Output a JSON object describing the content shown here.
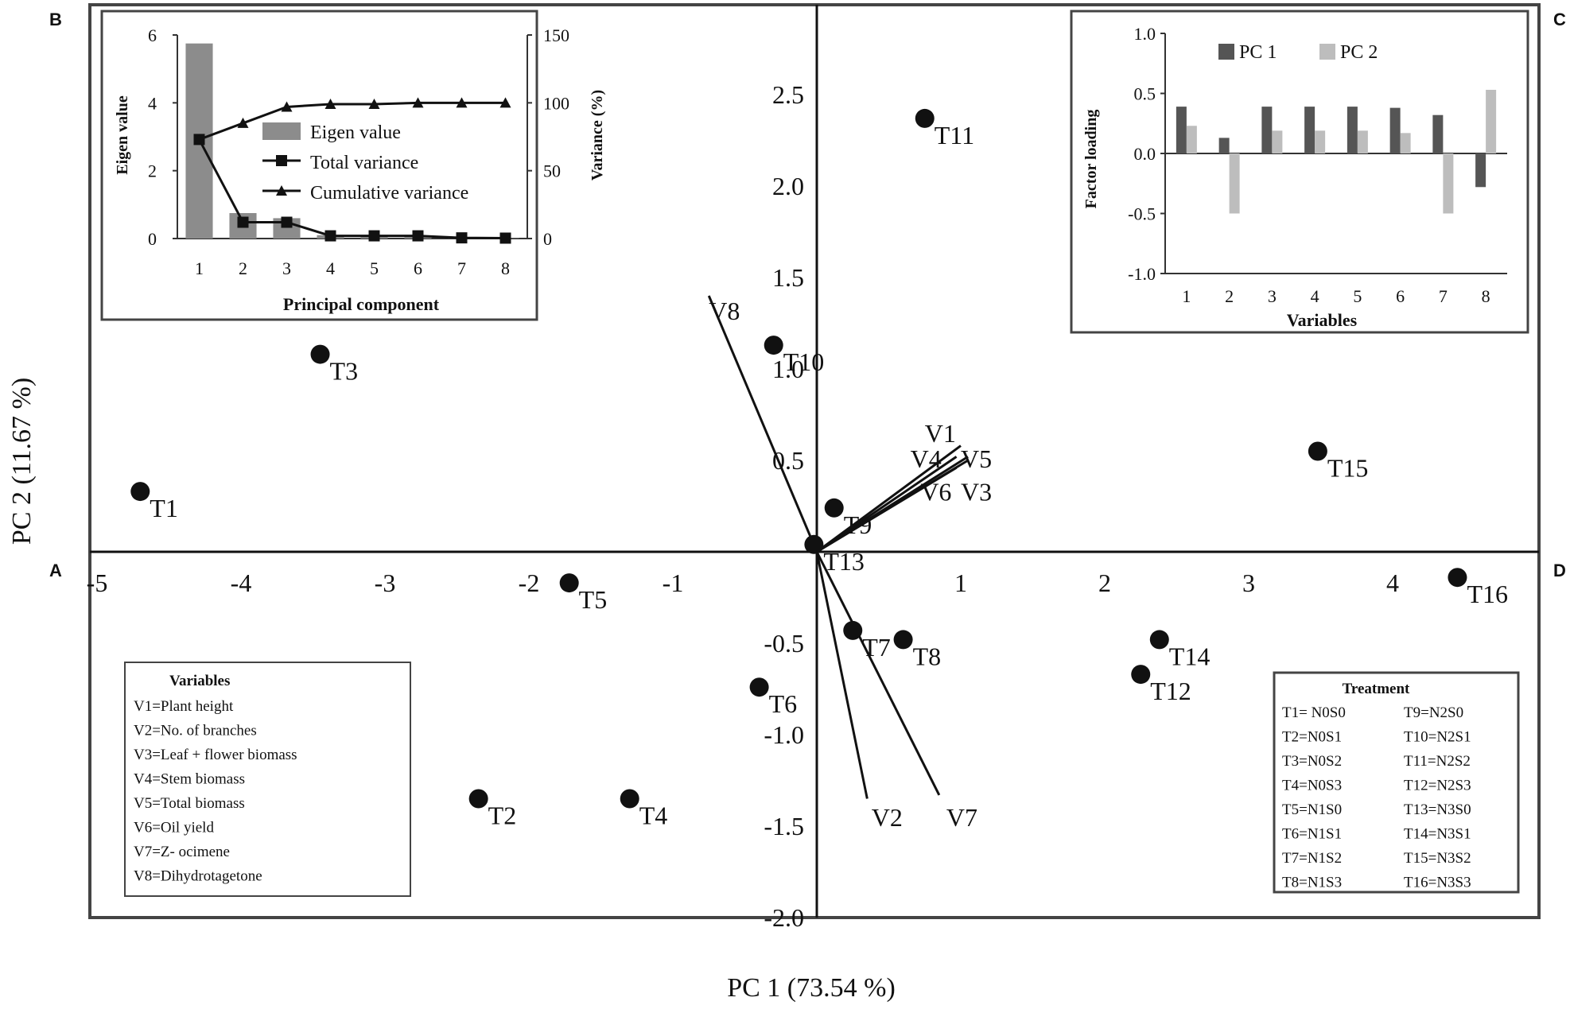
{
  "panel_letters": {
    "a": "A",
    "b": "B",
    "c": "C",
    "d": "D"
  },
  "chart_data": [
    {
      "id": "biplot",
      "type": "scatter",
      "xlabel": "PC 1 (73.54 %)",
      "ylabel": "PC 2 (11.67 %)",
      "xlim": [
        -5,
        5
      ],
      "ylim": [
        -2.0,
        3.0
      ],
      "x_ticks": [
        -5,
        -4,
        -3,
        -2,
        -1,
        1,
        2,
        3,
        4
      ],
      "x_tick_labels": [
        "-5",
        "-4",
        "-3",
        "-2",
        "-1",
        "1",
        "2",
        "3",
        "4"
      ],
      "y_ticks": [
        2.5,
        2.0,
        1.5,
        1.0,
        0.5,
        -0.5,
        -1.0,
        -1.5,
        -2.0
      ],
      "y_tick_labels": [
        "2.5",
        "2.0",
        "1.5",
        "1.0",
        "0.5",
        "-0.5",
        "-1.0",
        "-1.5",
        "-2.0"
      ],
      "points": [
        {
          "label": "T1",
          "x": -4.7,
          "y": 0.33
        },
        {
          "label": "T2",
          "x": -2.35,
          "y": -1.35
        },
        {
          "label": "T3",
          "x": -3.45,
          "y": 1.08
        },
        {
          "label": "T4",
          "x": -1.3,
          "y": -1.35
        },
        {
          "label": "T5",
          "x": -1.72,
          "y": -0.17
        },
        {
          "label": "T6",
          "x": -0.4,
          "y": -0.74
        },
        {
          "label": "T7",
          "x": 0.25,
          "y": -0.43
        },
        {
          "label": "T8",
          "x": 0.6,
          "y": -0.48
        },
        {
          "label": "T9",
          "x": 0.12,
          "y": 0.24
        },
        {
          "label": "T10",
          "x": -0.3,
          "y": 1.13
        },
        {
          "label": "T11",
          "x": 0.75,
          "y": 2.37
        },
        {
          "label": "T12",
          "x": 2.25,
          "y": -0.67
        },
        {
          "label": "T13",
          "x": -0.02,
          "y": 0.04
        },
        {
          "label": "T14",
          "x": 2.38,
          "y": -0.48
        },
        {
          "label": "T15",
          "x": 3.48,
          "y": 0.55
        },
        {
          "label": "T16",
          "x": 4.45,
          "y": -0.14
        }
      ],
      "vectors": [
        {
          "label": "V1",
          "x": 1.0,
          "y": 0.58
        },
        {
          "label": "V2",
          "x": 0.35,
          "y": -1.35
        },
        {
          "label": "V3",
          "x": 1.05,
          "y": 0.5
        },
        {
          "label": "V4",
          "x": 0.97,
          "y": 0.52
        },
        {
          "label": "V5",
          "x": 1.05,
          "y": 0.52
        },
        {
          "label": "V6",
          "x": 0.97,
          "y": 0.46
        },
        {
          "label": "V7",
          "x": 0.85,
          "y": -1.33
        },
        {
          "label": "V8",
          "x": -0.75,
          "y": 1.4
        }
      ],
      "vector_labels": [
        {
          "text": "V1",
          "x": 0.75,
          "y": 0.6
        },
        {
          "text": "V4",
          "x": 0.65,
          "y": 0.46
        },
        {
          "text": "V5",
          "x": 1.0,
          "y": 0.46
        },
        {
          "text": "V6",
          "x": 0.72,
          "y": 0.28
        },
        {
          "text": "V3",
          "x": 1.0,
          "y": 0.28
        },
        {
          "text": "V8",
          "x": -0.75,
          "y": 1.27
        },
        {
          "text": "V2",
          "x": 0.38,
          "y": -1.5
        },
        {
          "text": "V7",
          "x": 0.9,
          "y": -1.5
        }
      ],
      "variables_legend": {
        "title": "Variables",
        "items": [
          "V1=Plant height",
          "V2=No. of branches",
          "V3=Leaf + flower biomass",
          "V4=Stem biomass",
          "V5=Total biomass",
          "V6=Oil yield",
          "V7=Z- ocimene",
          "V8=Dihydrotagetone"
        ]
      },
      "treatment_legend": {
        "title": "Treatment",
        "left": [
          "T1= N0S0",
          "T2=N0S1",
          "T3=N0S2",
          "T4=N0S3",
          "T5=N1S0",
          "T6=N1S1",
          "T7=N1S2",
          "T8=N1S3"
        ],
        "right": [
          "T9=N2S0",
          "T10=N2S1",
          "T11=N2S2",
          "T12=N2S3",
          "T13=N3S0",
          "T14=N3S1",
          "T15=N3S2",
          "T16=N3S3"
        ]
      }
    },
    {
      "id": "scree",
      "type": "bar",
      "xlabel": "Principal component",
      "ylabel": "Eigen value",
      "y2label": "Variance (%)",
      "categories": [
        "1",
        "2",
        "3",
        "4",
        "5",
        "6",
        "7",
        "8"
      ],
      "ylim": [
        0,
        6
      ],
      "y_ticks": [
        "0",
        "2",
        "4",
        "6"
      ],
      "y2lim": [
        0,
        150
      ],
      "y2_ticks": [
        "0",
        "50",
        "100",
        "150"
      ],
      "legend_placement": "center-right",
      "series": [
        {
          "name": "Eigen value",
          "kind": "bar",
          "axis": "left",
          "color": "#8c8c8c",
          "values": [
            5.75,
            0.75,
            0.6,
            0.1,
            0.07,
            0.05,
            0.02,
            0.01
          ]
        },
        {
          "name": "Total  variance",
          "kind": "line",
          "marker": "square",
          "axis": "right",
          "values": [
            73,
            12,
            12,
            2,
            2,
            2,
            0.5,
            0.3
          ]
        },
        {
          "name": "Cumulative variance",
          "kind": "line",
          "marker": "triangle",
          "axis": "right",
          "values": [
            73,
            85,
            97,
            99,
            99,
            100,
            100,
            100
          ]
        }
      ]
    },
    {
      "id": "loadings",
      "type": "bar",
      "xlabel": "Variables",
      "ylabel": "Factor loading",
      "categories": [
        "1",
        "2",
        "3",
        "4",
        "5",
        "6",
        "7",
        "8"
      ],
      "ylim": [
        -1.0,
        1.0
      ],
      "y_ticks": [
        "1.0",
        "0.5",
        "0.0",
        "-0.5",
        "-1.0"
      ],
      "legend_placement": "top",
      "series": [
        {
          "name": "PC 1",
          "color": "#555555",
          "values": [
            0.39,
            0.13,
            0.39,
            0.39,
            0.39,
            0.38,
            0.32,
            -0.28
          ]
        },
        {
          "name": "PC 2",
          "color": "#bdbdbd",
          "values": [
            0.23,
            -0.5,
            0.19,
            0.19,
            0.19,
            0.17,
            -0.5,
            0.53
          ]
        }
      ]
    }
  ]
}
